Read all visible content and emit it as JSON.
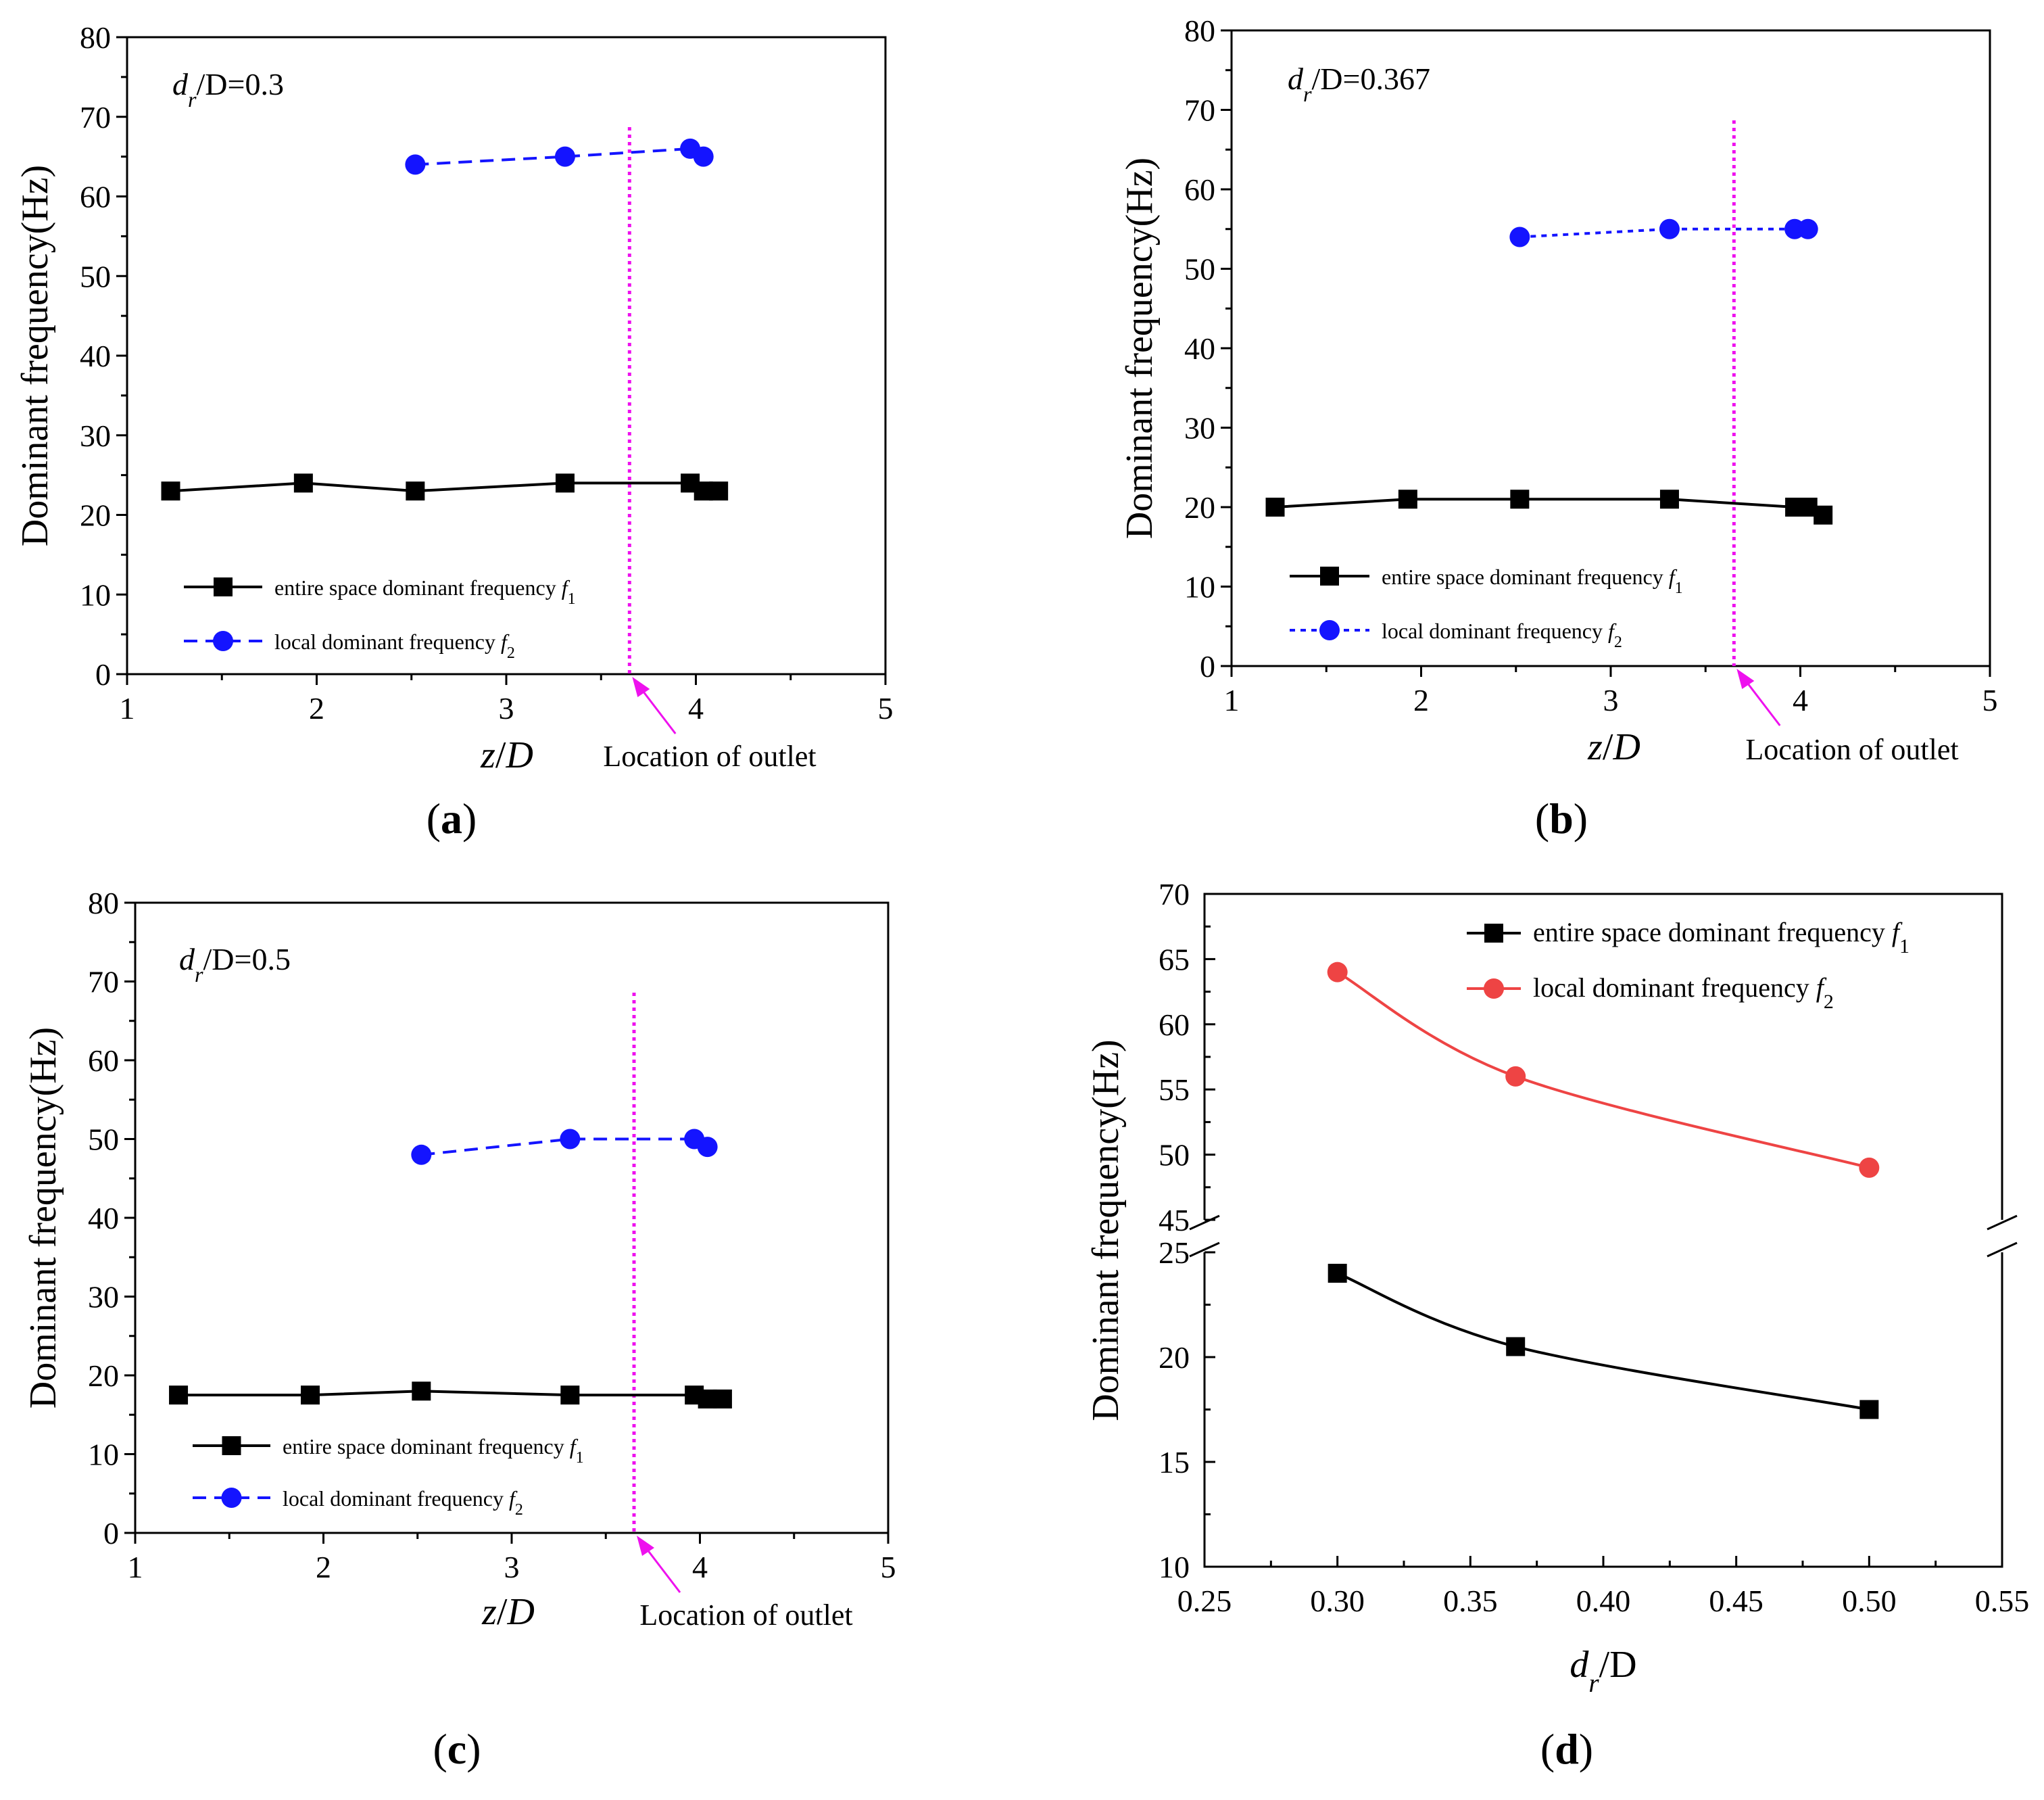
{
  "figure": {
    "colors": {
      "f1": "#000000",
      "f2_panels": "#1414ff",
      "f2_summary": "#ee4444",
      "outlet_line": "#ee11ee",
      "arrow": "#ee11ee"
    }
  },
  "chart_data": [
    {
      "type": "line",
      "panel": "(a)",
      "condition": {
        "var": "d",
        "sub": "r",
        "rest": "/D=0.3"
      },
      "xlabel": "z/D",
      "ylabel": "Dominant frequency(Hz)",
      "xlim": [
        1,
        5
      ],
      "ylim": [
        0,
        80
      ],
      "xticks": [
        "1",
        "2",
        "3",
        "4",
        "5"
      ],
      "yticks": [
        "0",
        "10",
        "20",
        "30",
        "40",
        "50",
        "60",
        "70",
        "80"
      ],
      "outlet_x": 3.65,
      "outlet_label": "Location of outlet",
      "series": [
        {
          "name": "entire space dominant frequency f1",
          "legend_text": "entire space dominant frequency ",
          "legend_var": "f",
          "legend_sub": "1",
          "marker": "square",
          "linestyle": "solid",
          "x": [
            1.23,
            1.93,
            2.52,
            3.31,
            3.97,
            4.04,
            4.12
          ],
          "y": [
            23,
            24,
            23,
            24,
            24,
            23,
            23
          ]
        },
        {
          "name": "local dominant frequency f2",
          "legend_text": "local dominant frequency ",
          "legend_var": "f",
          "legend_sub": "2",
          "marker": "circle",
          "linestyle": "dashed",
          "x": [
            2.52,
            3.31,
            3.97,
            4.04
          ],
          "y": [
            64,
            65,
            66,
            65
          ]
        }
      ]
    },
    {
      "type": "line",
      "panel": "(b)",
      "condition": {
        "var": "d",
        "sub": "r",
        "rest": "/D=0.367"
      },
      "xlabel": "z/D",
      "ylabel": "Dominant frequency(Hz)",
      "xlim": [
        1,
        5
      ],
      "ylim": [
        0,
        80
      ],
      "xticks": [
        "1",
        "2",
        "3",
        "4",
        "5"
      ],
      "yticks": [
        "0",
        "10",
        "20",
        "30",
        "40",
        "50",
        "60",
        "70",
        "80"
      ],
      "outlet_x": 3.65,
      "outlet_label": "Location of outlet",
      "series": [
        {
          "name": "entire space dominant frequency f1",
          "legend_text": "entire space dominant frequency ",
          "legend_var": "f",
          "legend_sub": "1",
          "marker": "square",
          "linestyle": "solid",
          "x": [
            1.23,
            1.93,
            2.52,
            3.31,
            3.97,
            4.04,
            4.12
          ],
          "y": [
            20,
            21,
            21,
            21,
            20,
            20,
            19
          ]
        },
        {
          "name": "local dominant frequency f2",
          "legend_text": "local dominant frequency ",
          "legend_var": "f",
          "legend_sub": "2",
          "marker": "circle",
          "linestyle": "dotted",
          "x": [
            2.52,
            3.31,
            3.97,
            4.04
          ],
          "y": [
            54,
            55,
            55,
            55
          ]
        }
      ]
    },
    {
      "type": "line",
      "panel": "(c)",
      "condition": {
        "var": "d",
        "sub": "r",
        "rest": "/D=0.5"
      },
      "xlabel": "z/D",
      "ylabel": "Dominant frequency(Hz)",
      "xlim": [
        1,
        5
      ],
      "ylim": [
        0,
        80
      ],
      "xticks": [
        "1",
        "2",
        "3",
        "4",
        "5"
      ],
      "yticks": [
        "0",
        "10",
        "20",
        "30",
        "40",
        "50",
        "60",
        "70",
        "80"
      ],
      "outlet_x": 3.65,
      "outlet_label": "Location of outlet",
      "series": [
        {
          "name": "entire space dominant frequency f1",
          "legend_text": "entire space dominant frequency ",
          "legend_var": "f",
          "legend_sub": "1",
          "marker": "square",
          "linestyle": "solid",
          "x": [
            1.23,
            1.93,
            2.52,
            3.31,
            3.97,
            4.04,
            4.12
          ],
          "y": [
            17.5,
            17.5,
            18,
            17.5,
            17.5,
            17,
            17
          ]
        },
        {
          "name": "local dominant frequency f2",
          "legend_text": "local dominant frequency ",
          "legend_var": "f",
          "legend_sub": "2",
          "marker": "circle",
          "linestyle": "dashed",
          "x": [
            2.52,
            3.31,
            3.97,
            4.04
          ],
          "y": [
            48,
            50,
            50,
            49
          ]
        }
      ]
    },
    {
      "type": "line",
      "panel": "(d)",
      "xlabel": {
        "var": "d",
        "sub": "r",
        "rest": "/D"
      },
      "ylabel": "Dominant frequency(Hz)",
      "xlim": [
        0.25,
        0.55
      ],
      "xticks": [
        "0.25",
        "0.30",
        "0.35",
        "0.40",
        "0.45",
        "0.50",
        "0.55"
      ],
      "y_break": true,
      "ylim_lower": [
        10,
        25
      ],
      "ylim_upper": [
        45,
        70
      ],
      "yticks_lower": [
        "10",
        "15",
        "20",
        "25"
      ],
      "yticks_upper": [
        "45",
        "50",
        "55",
        "60",
        "65",
        "70"
      ],
      "series": [
        {
          "name": "entire space dominant frequency f1",
          "legend_text": "entire space dominant frequency ",
          "legend_var": "f",
          "legend_sub": "1",
          "marker": "square",
          "linestyle": "solid",
          "x": [
            0.3,
            0.367,
            0.5
          ],
          "y": [
            24,
            20.5,
            17.5
          ]
        },
        {
          "name": "local dominant frequency f2",
          "legend_text": "local dominant frequency ",
          "legend_var": "f",
          "legend_sub": "2",
          "marker": "circle",
          "linestyle": "solid",
          "x": [
            0.3,
            0.367,
            0.5
          ],
          "y": [
            64,
            56,
            49
          ]
        }
      ]
    }
  ]
}
